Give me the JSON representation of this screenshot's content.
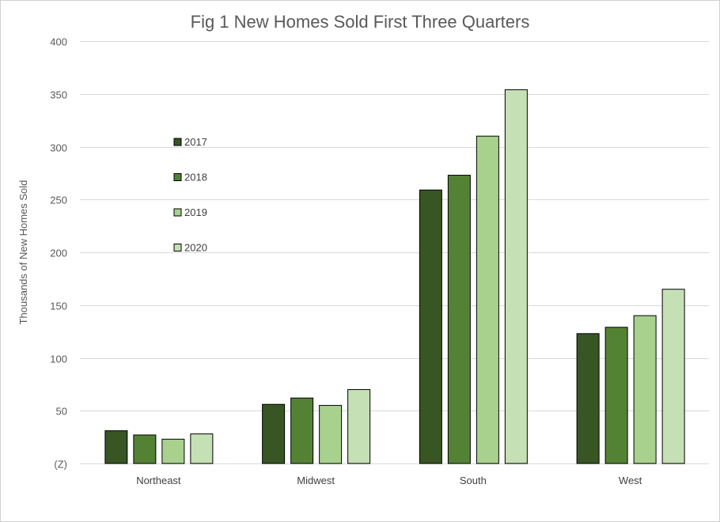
{
  "chart_data": {
    "type": "bar",
    "title": "Fig 1 New Homes Sold First Three Quarters",
    "xlabel": "",
    "ylabel": "Thousands of New Homes Sold",
    "categories": [
      "Northeast",
      "Midwest",
      "South",
      "West"
    ],
    "series": [
      {
        "name": "2017",
        "values": [
          31,
          56,
          259,
          123
        ],
        "color": "#375623"
      },
      {
        "name": "2018",
        "values": [
          27,
          62,
          273,
          129
        ],
        "color": "#548235"
      },
      {
        "name": "2019",
        "values": [
          23,
          55,
          310,
          140
        ],
        "color": "#a9d18e"
      },
      {
        "name": "2020",
        "values": [
          28,
          70,
          354,
          165
        ],
        "color": "#c5e0b4"
      }
    ],
    "ylim": [
      0,
      400
    ],
    "yticks": [
      0,
      50,
      100,
      150,
      200,
      250,
      300,
      350,
      400
    ],
    "ytick_labels": [
      "(Z)",
      "50",
      "100",
      "150",
      "200",
      "250",
      "300",
      "350",
      "400"
    ],
    "grid": true,
    "legend_position": "upper-left inside plot"
  }
}
